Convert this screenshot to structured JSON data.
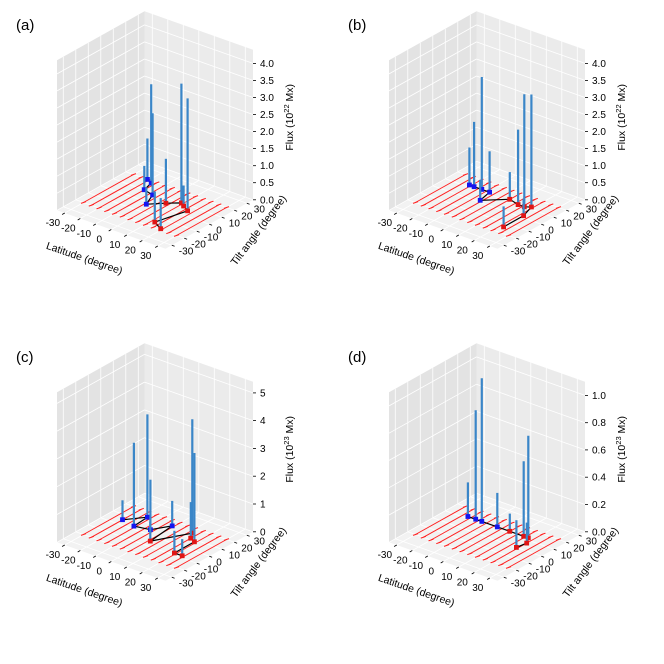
{
  "figure": {
    "panels": [
      "(a)",
      "(b)",
      "(c)",
      "(d)"
    ]
  },
  "colors": {
    "stem": "#3a86c8",
    "blue_marker": "#1515f0",
    "red_marker": "#e01515",
    "red_bar": "#ff2020",
    "path": "#000000",
    "pane_back": "#ebebeb",
    "pane_side": "#e3e3e3",
    "pane_floor": "#f2f2f2",
    "grid": "#ffffff"
  },
  "chart_data": [
    {
      "type": "scatter3d-stem",
      "panel_label": "(a)",
      "xlabel": "Latitude (degree)",
      "ylabel": "Tilt angle (degree)",
      "zlabel_prefix": "Flux (10",
      "zlabel_exp": "22",
      "zlabel_suffix": " Mx)",
      "xlim": [
        -35,
        35
      ],
      "ylim": [
        -35,
        35
      ],
      "zlim": [
        0,
        4.4
      ],
      "xticks": [
        "-30",
        "-20",
        "-10",
        "0",
        "10",
        "20",
        "30"
      ],
      "yticks": [
        "-30",
        "-20",
        "-10",
        "0",
        "10",
        "20",
        "30"
      ],
      "zticks": [
        "0.0",
        "0.5",
        "1.0",
        "1.5",
        "2.0",
        "2.5",
        "3.0",
        "3.5",
        "4.0"
      ],
      "ztick_values": [
        0,
        0.5,
        1.0,
        1.5,
        2.0,
        2.5,
        3.0,
        3.5,
        4.0
      ],
      "error_bar_latitudes": [
        -30,
        -25,
        -20,
        -15,
        -10,
        -5,
        0,
        5,
        10,
        15,
        20,
        25,
        30
      ],
      "error_bar_tilt_range": [
        -20,
        20
      ],
      "points": [
        {
          "latitude": -21,
          "tilt": 20,
          "flux": 1.2,
          "hemisphere": "south"
        },
        {
          "latitude": -17,
          "tilt": 18,
          "flux": 2.9,
          "hemisphere": "south"
        },
        {
          "latitude": -15,
          "tilt": 10,
          "flux": 0.7,
          "hemisphere": "south"
        },
        {
          "latitude": -8,
          "tilt": 8,
          "flux": 2.4,
          "hemisphere": "south"
        },
        {
          "latitude": -4,
          "tilt": -2,
          "flux": 0.5,
          "hemisphere": "south"
        },
        {
          "latitude": 3,
          "tilt": 5,
          "flux": 1.3,
          "hemisphere": "north"
        },
        {
          "latitude": 9,
          "tilt": 10,
          "flux": 3.5,
          "hemisphere": "north"
        },
        {
          "latitude": 12,
          "tilt": 8,
          "flux": 0.6,
          "hemisphere": "north"
        },
        {
          "latitude": 17,
          "tilt": 5,
          "flux": 3.3,
          "hemisphere": "north"
        },
        {
          "latitude": 12,
          "tilt": -15,
          "flux": 0.9,
          "hemisphere": "north"
        },
        {
          "latitude": 19,
          "tilt": -19,
          "flux": 0.9,
          "hemisphere": "north"
        }
      ]
    },
    {
      "type": "scatter3d-stem",
      "panel_label": "(b)",
      "xlabel": "Latitude (degree)",
      "ylabel": "Tilt angle (degree)",
      "zlabel_prefix": "Flux (10",
      "zlabel_exp": "22",
      "zlabel_suffix": " Mx)",
      "xlim": [
        -35,
        35
      ],
      "ylim": [
        -35,
        35
      ],
      "zlim": [
        0,
        4.4
      ],
      "xticks": [
        "-30",
        "-20",
        "-10",
        "0",
        "10",
        "20",
        "30"
      ],
      "yticks": [
        "-30",
        "-20",
        "-10",
        "0",
        "10",
        "20",
        "30"
      ],
      "zticks": [
        "0.0",
        "0.5",
        "1.0",
        "1.5",
        "2.0",
        "2.5",
        "3.0",
        "3.5",
        "4.0"
      ],
      "ztick_values": [
        0,
        0.5,
        1.0,
        1.5,
        2.0,
        2.5,
        3.0,
        3.5,
        4.0
      ],
      "error_bar_latitudes": [
        -30,
        -25,
        -20,
        -15,
        -10,
        -5,
        0,
        5,
        10,
        15,
        20,
        25,
        30
      ],
      "error_bar_tilt_range": [
        -20,
        20
      ],
      "points": [
        {
          "latitude": -21,
          "tilt": 12,
          "flux": 1.1,
          "hemisphere": "south"
        },
        {
          "latitude": -18,
          "tilt": 12,
          "flux": 1.9,
          "hemisphere": "south"
        },
        {
          "latitude": -13,
          "tilt": 12,
          "flux": 3.3,
          "hemisphere": "south"
        },
        {
          "latitude": -8,
          "tilt": 12,
          "flux": 1.2,
          "hemisphere": "south"
        },
        {
          "latitude": -6,
          "tilt": 2,
          "flux": 0.6,
          "hemisphere": "south"
        },
        {
          "latitude": 5,
          "tilt": 12,
          "flux": 0.8,
          "hemisphere": "north"
        },
        {
          "latitude": 12,
          "tilt": 10,
          "flux": 2.2,
          "hemisphere": "north"
        },
        {
          "latitude": 16,
          "tilt": 10,
          "flux": 3.3,
          "hemisphere": "north"
        },
        {
          "latitude": 19,
          "tilt": 12,
          "flux": 3.3,
          "hemisphere": "north"
        },
        {
          "latitude": 22,
          "tilt": 2,
          "flux": 0.5,
          "hemisphere": "north"
        },
        {
          "latitude": 22,
          "tilt": -14,
          "flux": 0.6,
          "hemisphere": "north"
        }
      ]
    },
    {
      "type": "scatter3d-stem",
      "panel_label": "(c)",
      "xlabel": "Latitude (degree)",
      "ylabel": "Tilt angle (degree)",
      "zlabel_prefix": "Flux (10",
      "zlabel_exp": "23",
      "zlabel_suffix": " Mx)",
      "xlim": [
        -35,
        35
      ],
      "ylim": [
        -35,
        35
      ],
      "zlim": [
        0,
        5.4
      ],
      "xticks": [
        "-30",
        "-20",
        "-10",
        "0",
        "10",
        "20",
        "30"
      ],
      "yticks": [
        "-30",
        "-20",
        "-10",
        "0",
        "10",
        "20",
        "30"
      ],
      "zticks": [
        "0",
        "1",
        "2",
        "3",
        "4",
        "5"
      ],
      "ztick_values": [
        0,
        1,
        2,
        3,
        4,
        5
      ],
      "error_bar_latitudes": [
        -30,
        -25,
        -20,
        -15,
        -10,
        -5,
        0,
        5,
        10,
        15,
        20,
        25,
        30
      ],
      "error_bar_tilt_range": [
        -20,
        20
      ],
      "points": [
        {
          "latitude": -25,
          "tilt": 5,
          "flux": 0.7,
          "hemisphere": "south"
        },
        {
          "latitude": -17,
          "tilt": 15,
          "flux": 3.7,
          "hemisphere": "south"
        },
        {
          "latitude": -16,
          "tilt": 3,
          "flux": 3.0,
          "hemisphere": "south"
        },
        {
          "latitude": -7,
          "tilt": 5,
          "flux": 1.8,
          "hemisphere": "south"
        },
        {
          "latitude": -1,
          "tilt": 15,
          "flux": 0.9,
          "hemisphere": "south"
        },
        {
          "latitude": 1,
          "tilt": -5,
          "flux": 0.7,
          "hemisphere": "north"
        },
        {
          "latitude": 12,
          "tilt": 15,
          "flux": 4.1,
          "hemisphere": "north"
        },
        {
          "latitude": 15,
          "tilt": 10,
          "flux": 1.3,
          "hemisphere": "north"
        },
        {
          "latitude": 19,
          "tilt": 8,
          "flux": 3.2,
          "hemisphere": "north"
        },
        {
          "latitude": 19,
          "tilt": -8,
          "flux": 0.8,
          "hemisphere": "north"
        },
        {
          "latitude": 24,
          "tilt": -8,
          "flux": 0.6,
          "hemisphere": "north"
        }
      ]
    },
    {
      "type": "scatter3d-stem",
      "panel_label": "(d)",
      "xlabel": "Latitude (degree)",
      "ylabel": "Tilt angle (degree)",
      "zlabel_prefix": "Flux (10",
      "zlabel_exp": "23",
      "zlabel_suffix": " Mx)",
      "xlim": [
        -35,
        35
      ],
      "ylim": [
        -35,
        35
      ],
      "zlim": [
        0,
        1.1
      ],
      "xticks": [
        "-30",
        "-20",
        "-10",
        "0",
        "10",
        "20",
        "30"
      ],
      "yticks": [
        "-30",
        "-20",
        "-10",
        "0",
        "10",
        "20",
        "30"
      ],
      "zticks": [
        "0.0",
        "0.2",
        "0.4",
        "0.6",
        "0.8",
        "1.0"
      ],
      "ztick_values": [
        0,
        0.2,
        0.4,
        0.6,
        0.8,
        1.0
      ],
      "error_bar_latitudes": [
        -30,
        -25,
        -20,
        -15,
        -10,
        -5,
        0,
        5,
        10,
        15,
        20,
        25,
        30
      ],
      "error_bar_tilt_range": [
        -20,
        20
      ],
      "points": [
        {
          "latitude": -22,
          "tilt": 12,
          "flux": 0.25,
          "hemisphere": "south"
        },
        {
          "latitude": -17,
          "tilt": 12,
          "flux": 0.8,
          "hemisphere": "south"
        },
        {
          "latitude": -13,
          "tilt": 12,
          "flux": 1.05,
          "hemisphere": "south"
        },
        {
          "latitude": -3,
          "tilt": 12,
          "flux": 0.25,
          "hemisphere": "south"
        },
        {
          "latitude": 5,
          "tilt": 12,
          "flux": 0.13,
          "hemisphere": "north"
        },
        {
          "latitude": 14,
          "tilt": 12,
          "flux": 0.55,
          "hemisphere": "north"
        },
        {
          "latitude": 17,
          "tilt": 12,
          "flux": 0.75,
          "hemisphere": "north"
        },
        {
          "latitude": 20,
          "tilt": 7,
          "flux": 0.15,
          "hemisphere": "north"
        },
        {
          "latitude": 19,
          "tilt": 0,
          "flux": 0.2,
          "hemisphere": "north"
        }
      ]
    }
  ]
}
